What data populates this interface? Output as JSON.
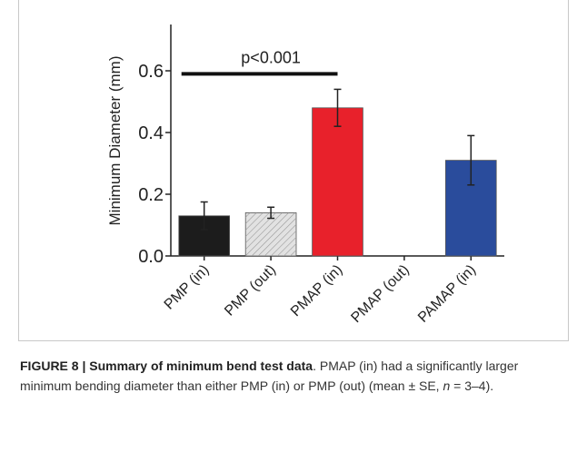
{
  "chart_data": {
    "type": "bar",
    "y_label": "Minimum Diameter (mm)",
    "categories": [
      "PMP (in)",
      "PMP (out)",
      "PMAP (in)",
      "PMAP (out)",
      "PAMAP (in)"
    ],
    "values": [
      0.13,
      0.14,
      0.48,
      null,
      0.31
    ],
    "errors": [
      0.045,
      0.018,
      0.06,
      null,
      0.08
    ],
    "colors": [
      "#1c1c1c",
      "#e2e2e2",
      "#e8212b",
      null,
      "#2a4c9c"
    ],
    "hatched": [
      false,
      true,
      false,
      false,
      false
    ],
    "ylim": [
      0,
      0.75
    ],
    "yticks": [
      {
        "value": 0,
        "label": "0.0"
      },
      0.2,
      0.4,
      0.6
    ],
    "annotation": {
      "text": "p<0.001",
      "y": 0.59,
      "from": 0,
      "to": 2
    }
  },
  "caption": {
    "heading": "FIGURE 8 | Summary of minimum bend test data",
    "text": ". PMAP (in) had a significantly larger minimum bending diameter than either PMP (in) or PMP (out) (mean ± SE, ",
    "italic": "n",
    "text_end": " = 3–4)."
  }
}
